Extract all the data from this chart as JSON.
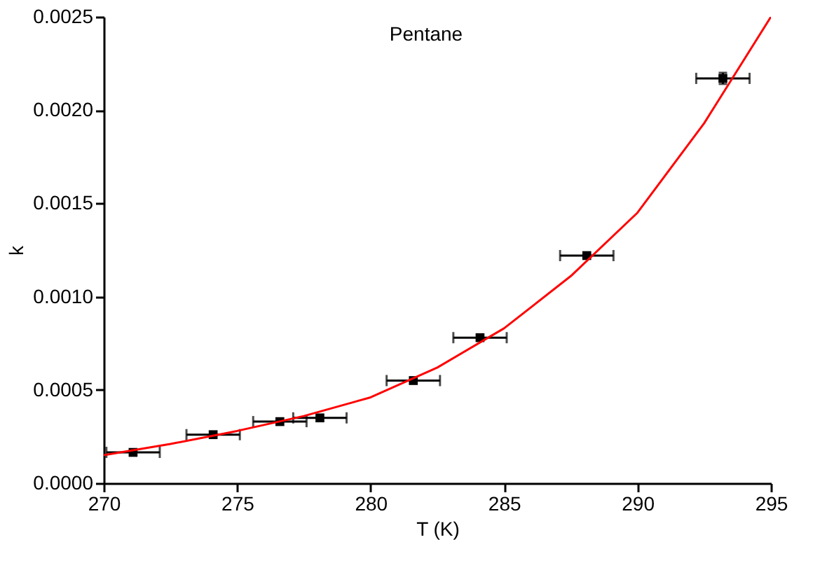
{
  "chart_data": {
    "type": "scatter",
    "xlabel": "T (K)",
    "ylabel": "k",
    "annotations": [
      "Pentane"
    ],
    "xlim": [
      270,
      295
    ],
    "xticks": [
      270,
      275,
      280,
      285,
      290,
      295
    ],
    "ylim": [
      0,
      0.0025
    ],
    "yticks": [
      {
        "value": 0,
        "label": "0.0000"
      },
      {
        "value": 0.0005,
        "label": "0.0005"
      },
      {
        "value": 0.001,
        "label": "0.0010"
      },
      {
        "value": 0.0015,
        "label": "0.0015"
      },
      {
        "value": 0.002,
        "label": "0.0020"
      },
      {
        "value": 0.0025,
        "label": "0.0025"
      }
    ],
    "grid": false,
    "series": [
      {
        "color": "#000000",
        "marker": "square",
        "x": [
          271.1,
          274.1,
          276.6,
          278.1,
          281.6,
          284.1,
          288.1,
          293.2
        ],
        "values": [
          0.000165,
          0.00026,
          0.00033,
          0.00035,
          0.00055,
          0.00078,
          0.00122,
          0.00217
        ],
        "xerrors": [
          1,
          1,
          1,
          1,
          1,
          1,
          1,
          1
        ],
        "errors": [
          null,
          null,
          null,
          null,
          null,
          null,
          null,
          3e-05
        ]
      },
      {
        "type": "line",
        "color": "#ff0000",
        "marker": "none",
        "line_style": "solid",
        "x": [
          270,
          272.5,
          275,
          277.5,
          280,
          282.5,
          285,
          287.5,
          290,
          292.5,
          295
        ],
        "values": [
          0.00015,
          0.00021,
          0.00028,
          0.00036,
          0.00046,
          0.00062,
          0.00083,
          0.00111,
          0.00145,
          0.00193,
          0.0025
        ]
      }
    ]
  }
}
